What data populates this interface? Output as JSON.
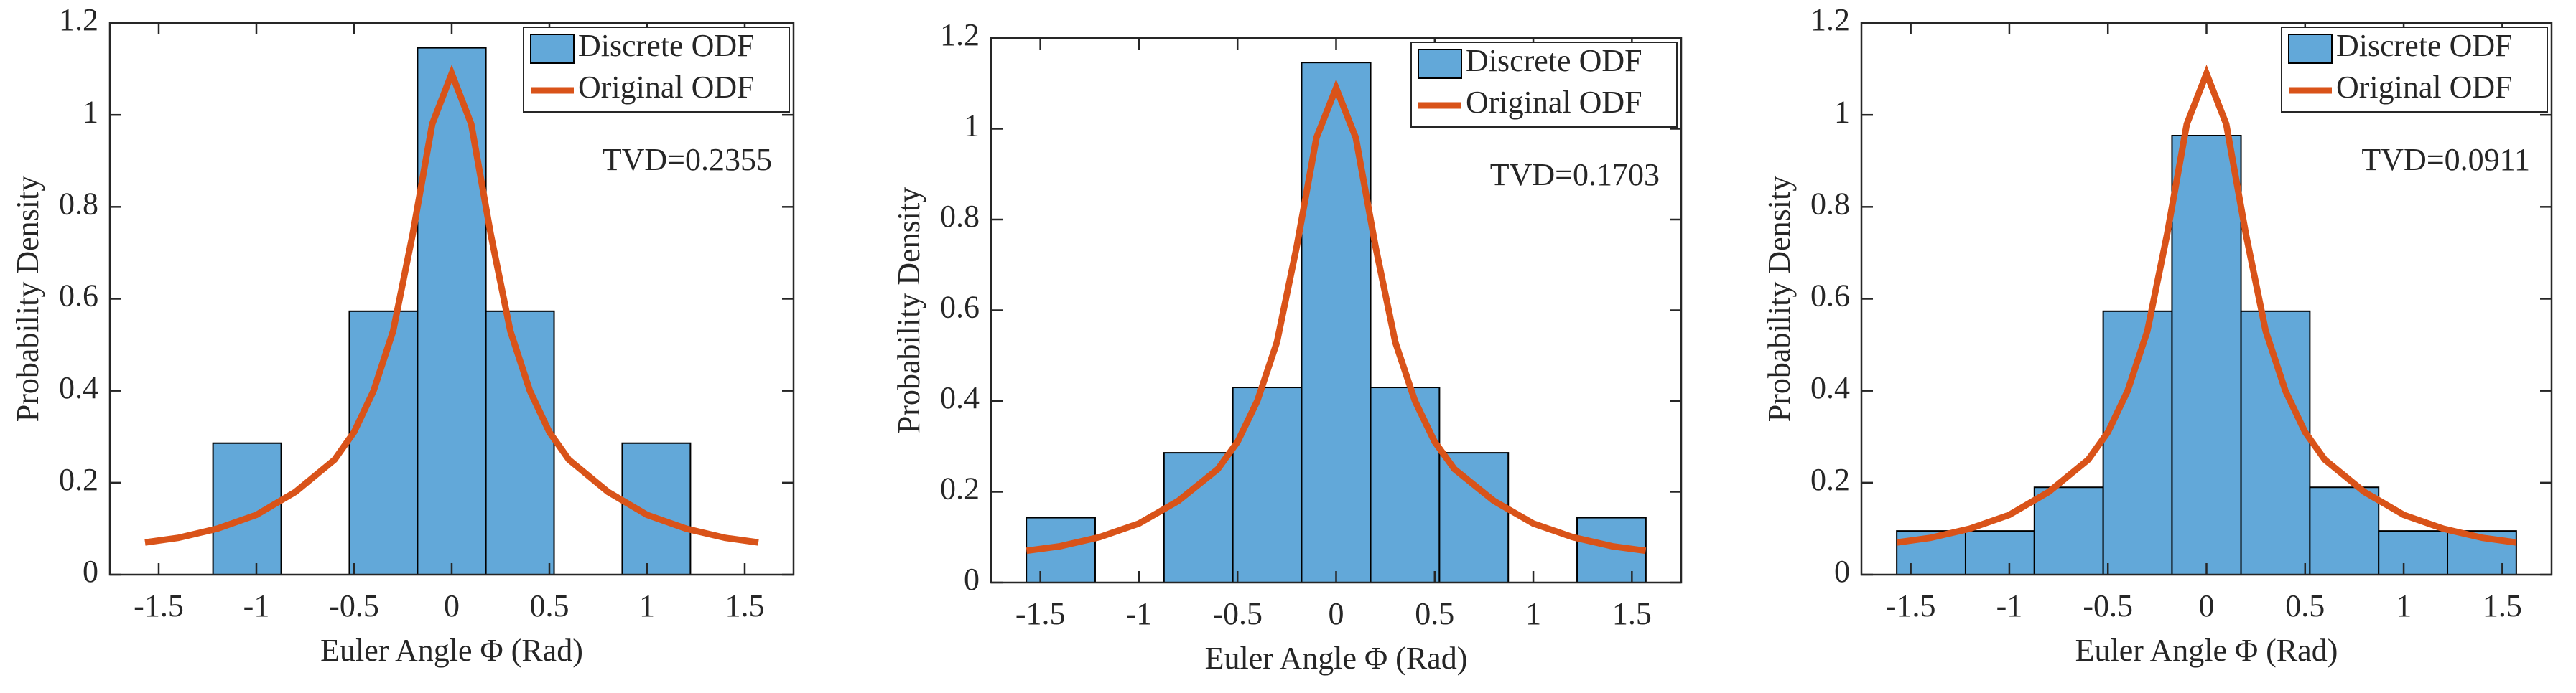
{
  "chart_data": [
    {
      "type": "histogram",
      "xlabel": "Euler Angle Φ (Rad)",
      "ylabel": "Probability Density",
      "annotation": "TVD=0.2355",
      "bins": [
        -1.571,
        -1.222,
        -0.873,
        -0.524,
        -0.175,
        0.175,
        0.524,
        0.873,
        1.222,
        1.571
      ],
      "series": [
        {
          "name": "Discrete ODF",
          "color": "#62a8d9",
          "values": [
            0,
            0.286,
            0,
            0.573,
            1.146,
            0.573,
            0,
            0.286,
            0
          ]
        },
        {
          "name": "Original ODF",
          "color": "#d95319",
          "x": [
            -1.57,
            -1.4,
            -1.2,
            -1.0,
            -0.8,
            -0.6,
            -0.5,
            -0.4,
            -0.3,
            -0.2,
            -0.1,
            0,
            0.1,
            0.2,
            0.3,
            0.4,
            0.5,
            0.6,
            0.8,
            1.0,
            1.2,
            1.4,
            1.57
          ],
          "values": [
            0.07,
            0.08,
            0.1,
            0.13,
            0.18,
            0.25,
            0.31,
            0.4,
            0.53,
            0.74,
            0.98,
            1.09,
            0.98,
            0.74,
            0.53,
            0.4,
            0.31,
            0.25,
            0.18,
            0.13,
            0.1,
            0.08,
            0.07
          ]
        }
      ],
      "xlim": [
        -1.75,
        1.75
      ],
      "ylim": [
        0,
        1.2
      ],
      "xticks": [
        -1.5,
        -1,
        -0.5,
        0,
        0.5,
        1,
        1.5
      ],
      "yticks": [
        0,
        0.2,
        0.4,
        0.6,
        0.8,
        1,
        1.2
      ],
      "legend": "upper right"
    },
    {
      "type": "histogram",
      "xlabel": "Euler Angle Φ (Rad)",
      "ylabel": "Probability Density",
      "annotation": "TVD=0.1703",
      "bins": [
        -1.571,
        -1.222,
        -0.873,
        -0.524,
        -0.175,
        0.175,
        0.524,
        0.873,
        1.222,
        1.571
      ],
      "series": [
        {
          "name": "Discrete ODF",
          "color": "#62a8d9",
          "values": [
            0.143,
            0,
            0.286,
            0.43,
            1.146,
            0.43,
            0.286,
            0,
            0.143
          ]
        },
        {
          "name": "Original ODF",
          "color": "#d95319",
          "x": [
            -1.57,
            -1.4,
            -1.2,
            -1.0,
            -0.8,
            -0.6,
            -0.5,
            -0.4,
            -0.3,
            -0.2,
            -0.1,
            0,
            0.1,
            0.2,
            0.3,
            0.4,
            0.5,
            0.6,
            0.8,
            1.0,
            1.2,
            1.4,
            1.57
          ],
          "values": [
            0.07,
            0.08,
            0.1,
            0.13,
            0.18,
            0.25,
            0.31,
            0.4,
            0.53,
            0.74,
            0.98,
            1.09,
            0.98,
            0.74,
            0.53,
            0.4,
            0.31,
            0.25,
            0.18,
            0.13,
            0.1,
            0.08,
            0.07
          ]
        }
      ],
      "xlim": [
        -1.75,
        1.75
      ],
      "ylim": [
        0,
        1.2
      ],
      "xticks": [
        -1.5,
        -1,
        -0.5,
        0,
        0.5,
        1,
        1.5
      ],
      "yticks": [
        0,
        0.2,
        0.4,
        0.6,
        0.8,
        1,
        1.2
      ],
      "legend": "upper right"
    },
    {
      "type": "histogram",
      "xlabel": "Euler Angle Φ (Rad)",
      "ylabel": "Probability Density",
      "annotation": "TVD=0.0911",
      "bins": [
        -1.571,
        -1.222,
        -0.873,
        -0.524,
        -0.175,
        0.175,
        0.524,
        0.873,
        1.222,
        1.571
      ],
      "series": [
        {
          "name": "Discrete ODF",
          "color": "#62a8d9",
          "values": [
            0.095,
            0.095,
            0.19,
            0.573,
            0.955,
            0.573,
            0.19,
            0.095,
            0.095
          ]
        },
        {
          "name": "Original ODF",
          "color": "#d95319",
          "x": [
            -1.57,
            -1.4,
            -1.2,
            -1.0,
            -0.8,
            -0.6,
            -0.5,
            -0.4,
            -0.3,
            -0.2,
            -0.1,
            0,
            0.1,
            0.2,
            0.3,
            0.4,
            0.5,
            0.6,
            0.8,
            1.0,
            1.2,
            1.4,
            1.57
          ],
          "values": [
            0.07,
            0.08,
            0.1,
            0.13,
            0.18,
            0.25,
            0.31,
            0.4,
            0.53,
            0.74,
            0.98,
            1.09,
            0.98,
            0.74,
            0.53,
            0.4,
            0.31,
            0.25,
            0.18,
            0.13,
            0.1,
            0.08,
            0.07
          ]
        }
      ],
      "xlim": [
        -1.75,
        1.75
      ],
      "ylim": [
        0,
        1.2
      ],
      "xticks": [
        -1.5,
        -1,
        -0.5,
        0,
        0.5,
        1,
        1.5
      ],
      "yticks": [
        0,
        0.2,
        0.4,
        0.6,
        0.8,
        1,
        1.2
      ],
      "legend": "upper right"
    }
  ]
}
